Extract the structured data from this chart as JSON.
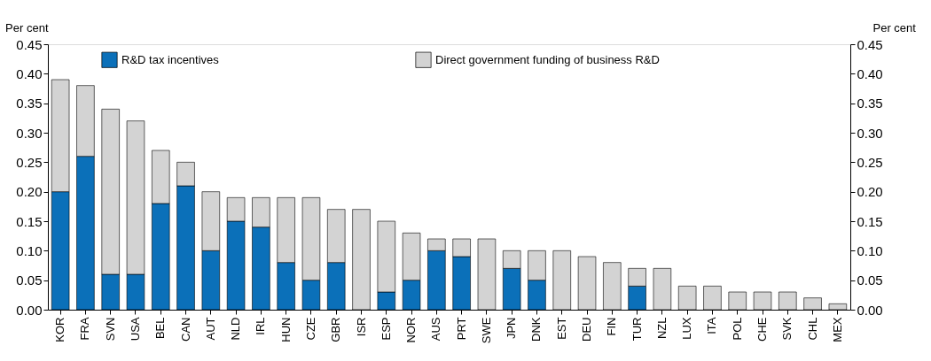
{
  "chart_data": {
    "type": "bar",
    "stacked": true,
    "ylabel": "Per cent",
    "y2label": "Per cent",
    "categories": [
      "KOR",
      "FRA",
      "SVN",
      "USA",
      "BEL",
      "CAN",
      "AUT",
      "NLD",
      "IRL",
      "HUN",
      "CZE",
      "GBR",
      "ISR",
      "ESP",
      "NOR",
      "AUS",
      "PRT",
      "SWE",
      "JPN",
      "DNK",
      "EST",
      "DEU",
      "FIN",
      "TUR",
      "NZL",
      "LUX",
      "ITA",
      "POL",
      "CHE",
      "SVK",
      "CHL",
      "MEX"
    ],
    "series": [
      {
        "name": "R&D tax incentives",
        "color": "#0b70b9",
        "values": [
          0.2,
          0.26,
          0.06,
          0.06,
          0.18,
          0.21,
          0.1,
          0.15,
          0.14,
          0.08,
          0.05,
          0.08,
          0,
          0.03,
          0.05,
          0.1,
          0.09,
          0,
          0.07,
          0.05,
          0,
          0,
          0,
          0.04,
          0,
          0,
          0,
          0,
          0,
          0,
          0,
          0
        ]
      },
      {
        "name": "Direct government funding of business R&D",
        "color": "#d3d3d3",
        "values": [
          0.19,
          0.12,
          0.28,
          0.26,
          0.09,
          0.04,
          0.1,
          0.04,
          0.05,
          0.11,
          0.14,
          0.09,
          0.17,
          0.12,
          0.08,
          0.02,
          0.03,
          0.12,
          0.03,
          0.05,
          0.1,
          0.09,
          0.08,
          0.03,
          0.07,
          0.04,
          0.04,
          0.03,
          0.03,
          0.03,
          0.02,
          0.01
        ]
      }
    ],
    "ylim": [
      0,
      0.45
    ],
    "y2lim": [
      0,
      0.45
    ],
    "yticks": [
      {
        "value": 0,
        "label": "0.00"
      },
      {
        "value": 0.05,
        "label": "0.05"
      },
      {
        "value": 0.1,
        "label": "0.10"
      },
      {
        "value": 0.15,
        "label": "0.15"
      },
      {
        "value": 0.2,
        "label": "0.20"
      },
      {
        "value": 0.25,
        "label": "0.25"
      },
      {
        "value": 0.3,
        "label": "0.30"
      },
      {
        "value": 0.35,
        "label": "0.35"
      },
      {
        "value": 0.4,
        "label": "0.40"
      },
      {
        "value": 0.45,
        "label": "0.45"
      }
    ],
    "y2ticks": [
      {
        "value": 0,
        "label": "0.00"
      },
      {
        "value": 0.05,
        "label": "0.05"
      },
      {
        "value": 0.1,
        "label": "0.10"
      },
      {
        "value": 0.15,
        "label": "0.15"
      },
      {
        "value": 0.2,
        "label": "0.20"
      },
      {
        "value": 0.25,
        "label": "0.25"
      },
      {
        "value": 0.3,
        "label": "0.30"
      },
      {
        "value": 0.35,
        "label": "0.35"
      },
      {
        "value": 0.4,
        "label": "0.40"
      },
      {
        "value": 0.45,
        "label": "0.45"
      }
    ],
    "grid": false,
    "legend": "top"
  }
}
